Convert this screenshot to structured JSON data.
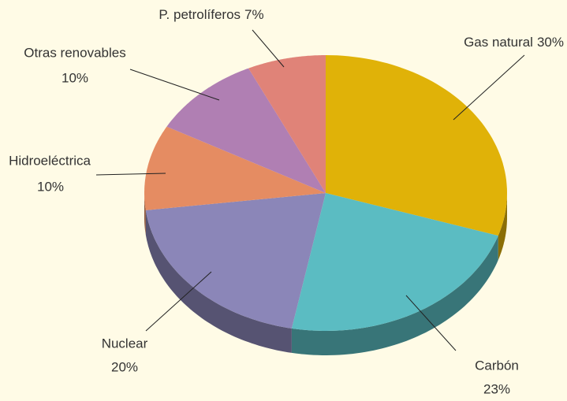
{
  "chart_data": {
    "type": "pie",
    "categories": [
      "Gas natural",
      "Carbón",
      "Nuclear",
      "Hidroeléctrica",
      "Otras renovables",
      "P. petrolíferos"
    ],
    "values": [
      30,
      23,
      20,
      10,
      10,
      7
    ],
    "value_labels": [
      "30%",
      "23%",
      "20%",
      "10%",
      "10%",
      "7%"
    ],
    "colors": [
      "#e0b208",
      "#5bbcc2",
      "#8b86b8",
      "#e58c62",
      "#b07fb3",
      "#e08378"
    ]
  }
}
